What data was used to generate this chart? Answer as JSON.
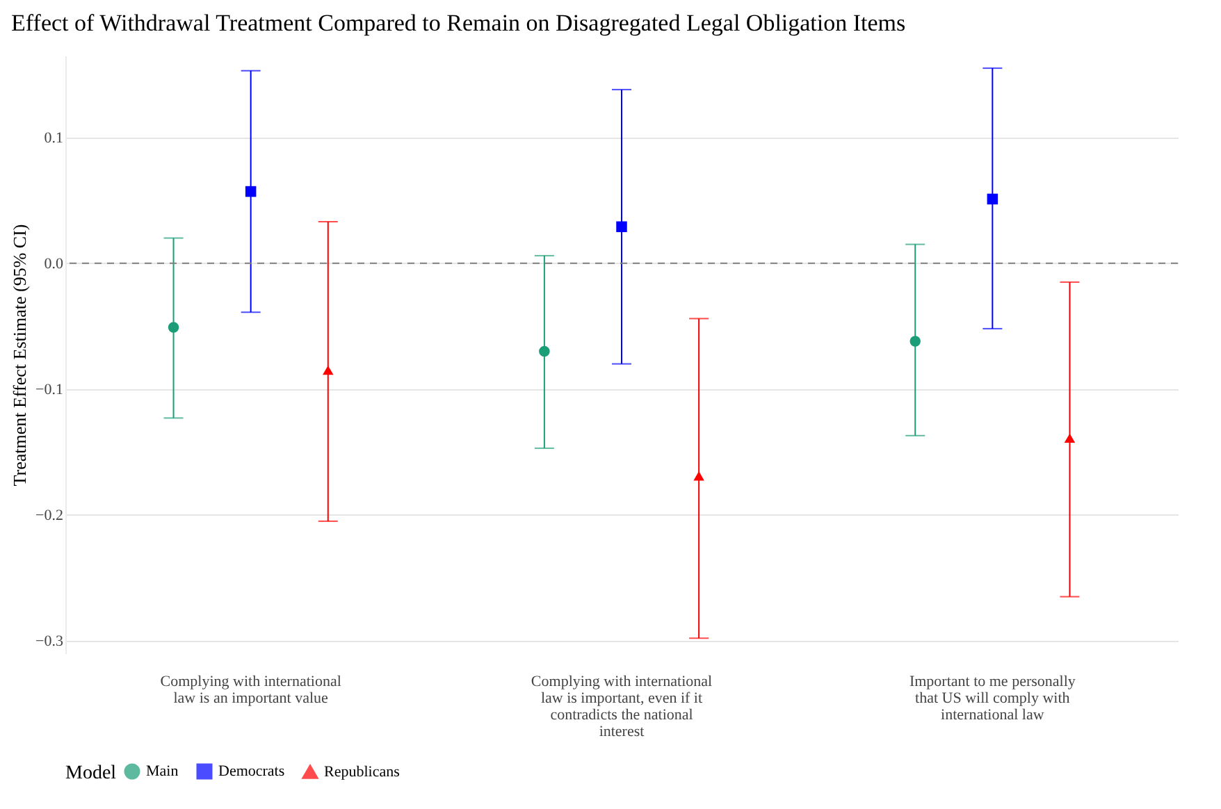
{
  "chart_data": {
    "type": "scatter",
    "title": "Effect of Withdrawal Treatment Compared to Remain on Disagregated Legal Obligation Items",
    "ylabel": "Treatment Effect Estimate (95% CI)",
    "legend_title": "Model",
    "legend": "bottom",
    "grid": "y",
    "categories": [
      "Complying with international law is an important value",
      "Complying with international law is important, even if it contradicts the national interest",
      "Important to me personally that US will comply with international law"
    ],
    "ylim": [
      -0.31,
      0.165
    ],
    "yticks": [
      {
        "value": -0.3,
        "label": "−0.3"
      },
      {
        "value": -0.2,
        "label": "−0.2"
      },
      {
        "value": -0.1,
        "label": "−0.1"
      },
      {
        "value": 0,
        "label": "0.0"
      },
      {
        "value": 0.1,
        "label": "0.1"
      }
    ],
    "ref_lines": [
      {
        "axis": "y",
        "value": 0,
        "color": "#808080",
        "line_style": "dashed"
      }
    ],
    "series": [
      {
        "name": "Main",
        "color": "#1b9e77",
        "marker": "circle",
        "values": [
          -0.051,
          -0.07,
          -0.062
        ],
        "errors": [
          [
            -0.123,
            0.02
          ],
          [
            -0.147,
            0.006
          ],
          [
            -0.137,
            0.015
          ]
        ]
      },
      {
        "name": "Democrats",
        "color": "#0000ff",
        "marker": "square",
        "values": [
          0.057,
          0.029,
          0.051
        ],
        "errors": [
          [
            -0.039,
            0.153
          ],
          [
            -0.08,
            0.138
          ],
          [
            -0.052,
            0.155
          ]
        ]
      },
      {
        "name": "Republicans",
        "color": "#ff0000",
        "marker": "triangle",
        "values": [
          -0.085,
          -0.169,
          -0.139
        ],
        "errors": [
          [
            -0.205,
            0.033
          ],
          [
            -0.298,
            -0.044
          ],
          [
            -0.265,
            -0.015
          ]
        ]
      }
    ]
  }
}
